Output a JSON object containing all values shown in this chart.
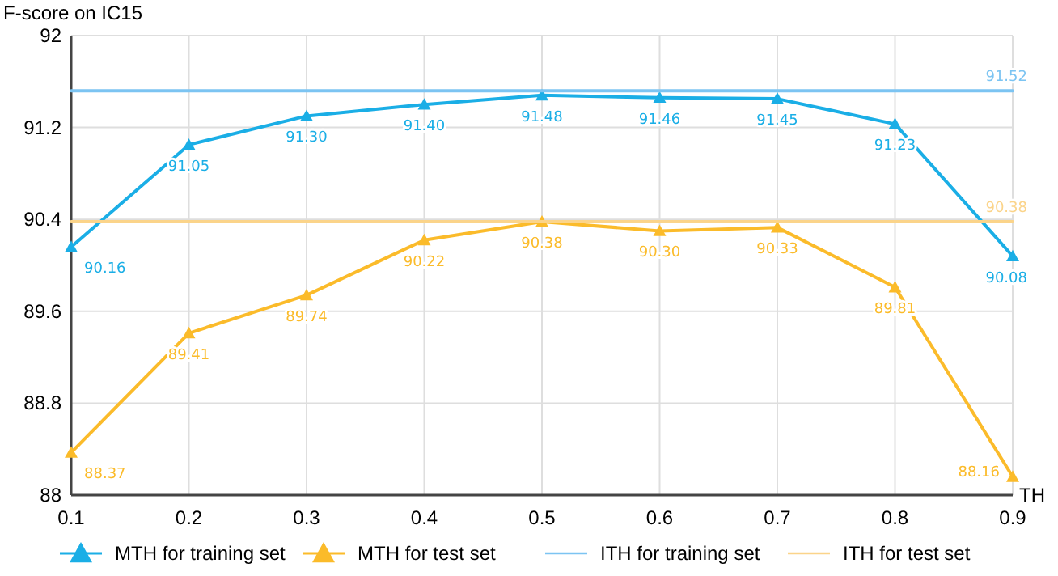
{
  "chart_data": {
    "type": "line",
    "ylabel": "F-score on IC15",
    "xlabel": "TH",
    "xlim": [
      0.1,
      0.9
    ],
    "xticks": [
      0.1,
      0.2,
      0.3,
      0.4,
      0.5,
      0.6,
      0.7,
      0.8,
      0.9
    ],
    "ylim": [
      88,
      92
    ],
    "yticks": [
      88,
      88.8,
      89.6,
      90.4,
      91.2,
      92
    ],
    "grid": true,
    "legend": "bottom",
    "line_style": "solid",
    "series": [
      {
        "name": "MTH for training set",
        "color": "#1aaee6",
        "marker": "triangle",
        "x": [
          0.1,
          0.2,
          0.3,
          0.4,
          0.5,
          0.6,
          0.7,
          0.8,
          0.9
        ],
        "values": [
          90.16,
          91.05,
          91.3,
          91.4,
          91.48,
          91.46,
          91.45,
          91.23,
          90.08
        ],
        "value_labels": [
          "90.16",
          "91.05",
          "91.30",
          "91.40",
          "91.48",
          "91.46",
          "91.45",
          "91.23",
          "90.08"
        ]
      },
      {
        "name": "MTH for test set",
        "color": "#fbbb2a",
        "marker": "triangle",
        "x": [
          0.1,
          0.2,
          0.3,
          0.4,
          0.5,
          0.6,
          0.7,
          0.8,
          0.9
        ],
        "values": [
          88.37,
          89.41,
          89.74,
          90.22,
          90.38,
          90.3,
          90.33,
          89.81,
          88.16
        ],
        "value_labels": [
          "88.37",
          "89.41",
          "89.74",
          "90.22",
          "90.38",
          "90.30",
          "90.33",
          "89.81",
          "88.16"
        ]
      },
      {
        "name": "ITH for training set",
        "color": "#7cc4f2",
        "marker": "none",
        "x": [
          0.1,
          0.9
        ],
        "values": [
          91.52,
          91.52
        ],
        "value_labels": [
          null,
          "91.52"
        ]
      },
      {
        "name": "ITH for test set",
        "color": "#fbd48a",
        "marker": "none",
        "x": [
          0.1,
          0.9
        ],
        "values": [
          90.38,
          90.38
        ],
        "value_labels": [
          null,
          "90.38"
        ]
      }
    ]
  }
}
